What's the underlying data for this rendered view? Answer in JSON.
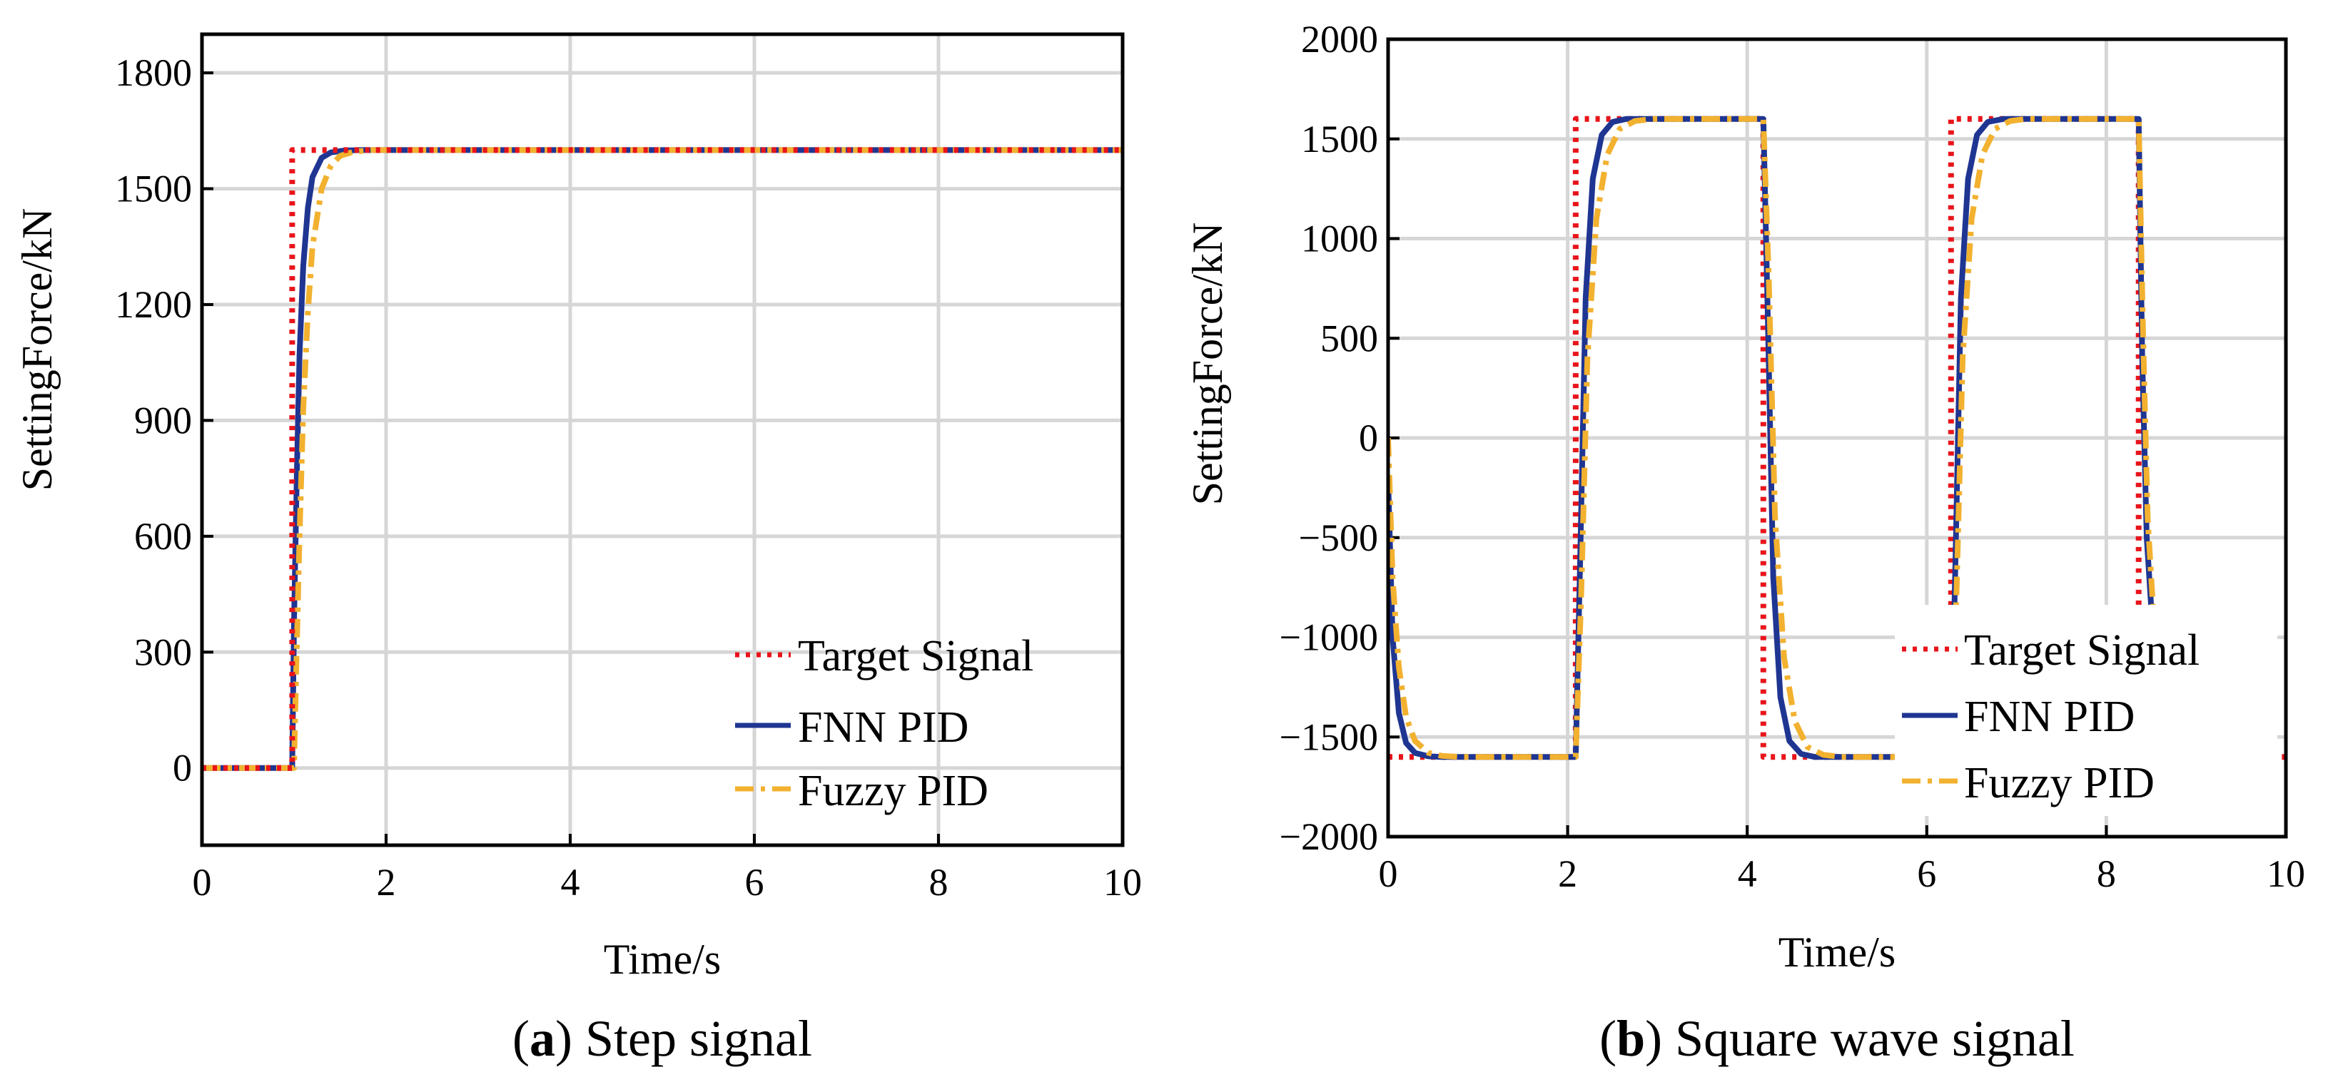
{
  "chart_data": [
    {
      "type": "line",
      "caption_letter": "a",
      "caption_text": "Step signal",
      "xlabel": "Time/s",
      "ylabel": "SettingForce/kN",
      "xlim": [
        0,
        10
      ],
      "ylim": [
        -200,
        1900
      ],
      "xticks": [
        0,
        2,
        4,
        6,
        8,
        10
      ],
      "yticks": [
        0,
        300,
        600,
        900,
        1200,
        1500,
        1800
      ],
      "grid": true,
      "legend_position": "bottom-right",
      "series": [
        {
          "name": "Target Signal",
          "color": "#e8141b",
          "style": "dotted",
          "x": [
            0,
            0.98,
            0.98,
            10
          ],
          "y": [
            0,
            0,
            1600,
            1600
          ]
        },
        {
          "name": "FNN PID",
          "color": "#1f3592",
          "style": "solid",
          "x": [
            0,
            0.98,
            1.0,
            1.03,
            1.06,
            1.1,
            1.15,
            1.2,
            1.3,
            1.4,
            1.55,
            1.75,
            2.0,
            10
          ],
          "y": [
            0,
            0,
            380,
            760,
            1070,
            1300,
            1450,
            1530,
            1580,
            1594,
            1599,
            1600,
            1600,
            1600
          ]
        },
        {
          "name": "Fuzzy PID",
          "color": "#f2b12f",
          "style": "dashdot",
          "x": [
            0,
            1.0,
            1.02,
            1.06,
            1.1,
            1.15,
            1.2,
            1.3,
            1.4,
            1.5,
            1.65,
            1.85,
            2.1,
            10
          ],
          "y": [
            0,
            0,
            220,
            600,
            930,
            1180,
            1350,
            1500,
            1560,
            1585,
            1596,
            1600,
            1600,
            1600
          ]
        }
      ],
      "legend": [
        "Target Signal",
        "FNN PID",
        "Fuzzy PID"
      ]
    },
    {
      "type": "line",
      "caption_letter": "b",
      "caption_text": "Square wave signal",
      "xlabel": "Time/s",
      "ylabel": "SettingForce/kN",
      "xlim": [
        0,
        10
      ],
      "ylim": [
        -2000,
        2000
      ],
      "xticks": [
        0,
        2,
        4,
        6,
        8,
        10
      ],
      "yticks": [
        -2000,
        -1500,
        -1000,
        -500,
        0,
        500,
        1000,
        1500,
        2000
      ],
      "ytick_labels": [
        "−2000",
        "−1500",
        "−1000",
        "−500",
        "0",
        "500",
        "1000",
        "1500",
        "2000"
      ],
      "grid": true,
      "legend_position": "bottom-right",
      "series": [
        {
          "name": "Target Signal",
          "color": "#e8141b",
          "style": "dotted",
          "x": [
            0,
            0,
            2.09,
            2.09,
            4.18,
            4.18,
            6.27,
            6.27,
            8.36,
            8.36,
            10
          ],
          "y": [
            -1600,
            -1600,
            -1600,
            1600,
            1600,
            -1600,
            -1600,
            1600,
            1600,
            -1600,
            -1600
          ]
        },
        {
          "name": "FNN PID",
          "color": "#1f3592",
          "style": "solid",
          "x": [
            0,
            0.05,
            0.12,
            0.2,
            0.3,
            0.45,
            0.6,
            2.09,
            2.14,
            2.2,
            2.28,
            2.38,
            2.5,
            2.65,
            4.18,
            4.23,
            4.29,
            4.37,
            4.47,
            4.6,
            4.75,
            6.27,
            6.32,
            6.38,
            6.46,
            6.56,
            6.68,
            6.85,
            8.36,
            8.4,
            8.45,
            8.5
          ],
          "y": [
            -200,
            -1000,
            -1380,
            -1530,
            -1580,
            -1597,
            -1600,
            -1600,
            -600,
            700,
            1300,
            1520,
            1585,
            1600,
            1600,
            600,
            -700,
            -1300,
            -1520,
            -1585,
            -1600,
            -1600,
            -600,
            700,
            1300,
            1520,
            1585,
            1600,
            1600,
            400,
            -500,
            -850
          ]
        },
        {
          "name": "Fuzzy PID",
          "color": "#f2b12f",
          "style": "dashdot",
          "x": [
            0,
            0.05,
            0.12,
            0.2,
            0.3,
            0.45,
            0.6,
            0.8,
            2.09,
            2.15,
            2.22,
            2.32,
            2.44,
            2.58,
            2.75,
            2.95,
            4.18,
            4.24,
            4.31,
            4.41,
            4.53,
            4.67,
            4.85,
            5.05,
            6.27,
            6.33,
            6.4,
            6.5,
            6.62,
            6.76,
            6.93,
            7.1,
            8.36,
            8.41,
            8.46,
            8.52
          ],
          "y": [
            0,
            -700,
            -1150,
            -1400,
            -1520,
            -1580,
            -1595,
            -1600,
            -1600,
            -800,
            400,
            1100,
            1420,
            1550,
            1590,
            1600,
            1600,
            800,
            -400,
            -1100,
            -1420,
            -1550,
            -1590,
            -1600,
            -1600,
            -800,
            400,
            1100,
            1420,
            1550,
            1590,
            1600,
            1600,
            500,
            -400,
            -850
          ]
        }
      ],
      "legend": [
        "Target Signal",
        "FNN PID",
        "Fuzzy PID"
      ]
    }
  ]
}
